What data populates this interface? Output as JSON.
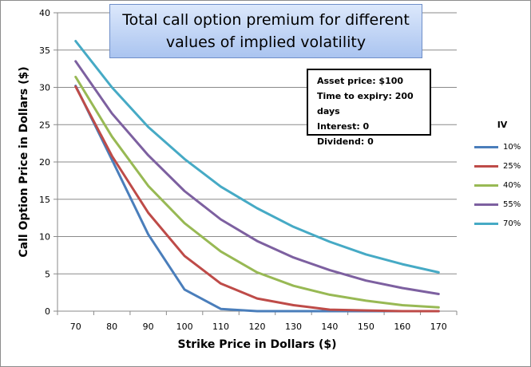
{
  "chart_data": {
    "type": "line",
    "title_lines": [
      "Total call option premium for different",
      "values of implied volatility"
    ],
    "xlabel": "Strike Price in Dollars ($)",
    "ylabel": "Call Option Price in Dollars ($)",
    "x": [
      70,
      80,
      90,
      100,
      110,
      120,
      130,
      140,
      150,
      160,
      170
    ],
    "ylim": [
      0,
      40
    ],
    "yticks": [
      0,
      5,
      10,
      15,
      20,
      25,
      30,
      35,
      40
    ],
    "grid": true,
    "legend_title": "IV",
    "legend_position": "right",
    "series": [
      {
        "name": "10%",
        "color": "#4a7ebb",
        "values": [
          30.2,
          20.3,
          10.3,
          2.9,
          0.3,
          0.0,
          0.0,
          0.0,
          0.0,
          0.0,
          0.0
        ]
      },
      {
        "name": "25%",
        "color": "#be4b48",
        "values": [
          30.1,
          20.8,
          13.2,
          7.4,
          3.7,
          1.7,
          0.8,
          0.2,
          0.1,
          0.0,
          0.0
        ]
      },
      {
        "name": "40%",
        "color": "#98b954",
        "values": [
          31.4,
          23.4,
          16.8,
          11.8,
          8.0,
          5.2,
          3.4,
          2.2,
          1.4,
          0.8,
          0.5
        ]
      },
      {
        "name": "55%",
        "color": "#7d60a0",
        "values": [
          33.5,
          26.5,
          20.9,
          16.1,
          12.3,
          9.4,
          7.2,
          5.5,
          4.1,
          3.1,
          2.3
        ]
      },
      {
        "name": "70%",
        "color": "#46aac5",
        "values": [
          36.2,
          30.0,
          24.7,
          20.4,
          16.7,
          13.8,
          11.3,
          9.3,
          7.6,
          6.3,
          5.2
        ]
      }
    ],
    "annotation": [
      "Asset price: $100",
      "Time to expiry: 200  days",
      "Interest: 0",
      "Dividend: 0"
    ]
  }
}
